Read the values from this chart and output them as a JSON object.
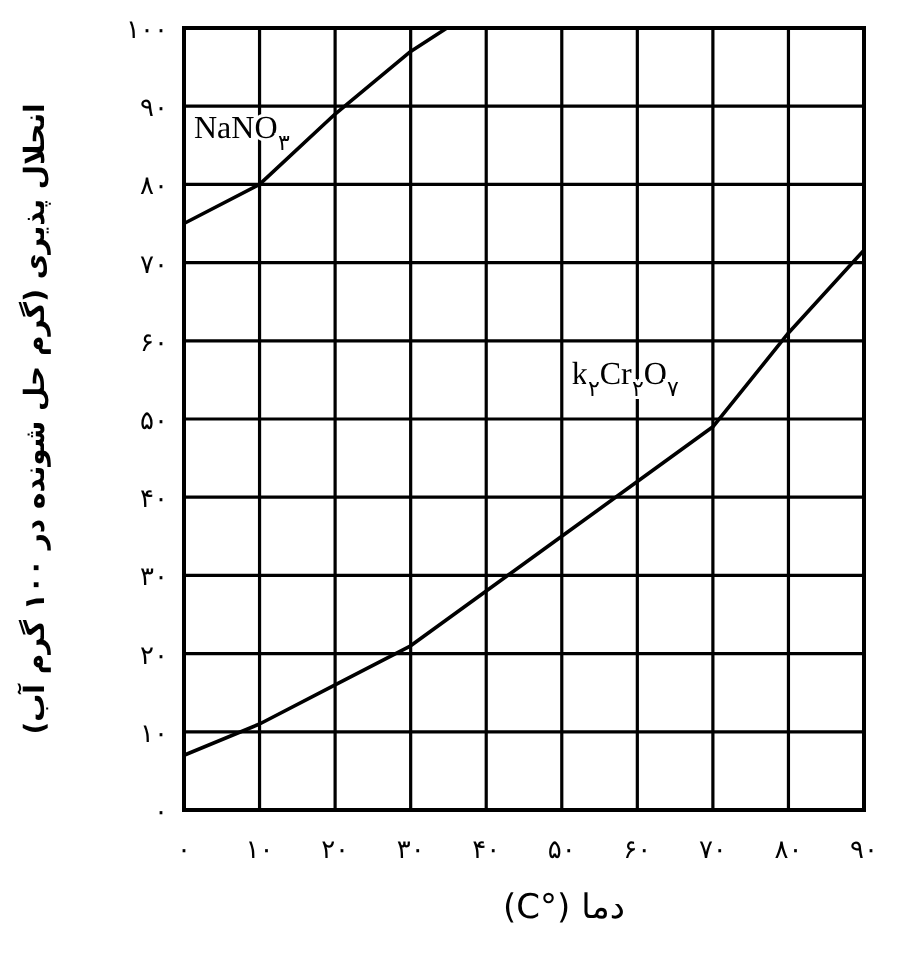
{
  "chart_data": {
    "type": "line",
    "xlabel": "دما (°C)",
    "ylabel": "انحلال پذیری (گرم حل شونده در ۱۰۰ گرم آب)",
    "xlim": [
      0,
      90
    ],
    "ylim": [
      0,
      100
    ],
    "xticks": [
      {
        "value": 0,
        "label": "۰"
      },
      {
        "value": 10,
        "label": "۱۰"
      },
      {
        "value": 20,
        "label": "۲۰"
      },
      {
        "value": 30,
        "label": "۳۰"
      },
      {
        "value": 40,
        "label": "۴۰"
      },
      {
        "value": 50,
        "label": "۵۰"
      },
      {
        "value": 60,
        "label": "۶۰"
      },
      {
        "value": 70,
        "label": "۷۰"
      },
      {
        "value": 80,
        "label": "۸۰"
      },
      {
        "value": 90,
        "label": "۹۰"
      }
    ],
    "yticks": [
      {
        "value": 0,
        "label": "۰"
      },
      {
        "value": 10,
        "label": "۱۰"
      },
      {
        "value": 20,
        "label": "۲۰"
      },
      {
        "value": 30,
        "label": "۳۰"
      },
      {
        "value": 40,
        "label": "۴۰"
      },
      {
        "value": 50,
        "label": "۵۰"
      },
      {
        "value": 60,
        "label": "۶۰"
      },
      {
        "value": 70,
        "label": "۷۰"
      },
      {
        "value": 80,
        "label": "۸۰"
      },
      {
        "value": 90,
        "label": "۹۰"
      },
      {
        "value": 100,
        "label": "۱۰۰"
      }
    ],
    "grid": true,
    "marker": "none",
    "line_style": "solid",
    "series": [
      {
        "name": "NaNO$_{۳}$",
        "color": "#000000",
        "x": [
          0,
          10,
          20,
          30,
          34.8
        ],
        "values": [
          75,
          80,
          89,
          97,
          100
        ]
      },
      {
        "name": "k$_{۲}$Cr$_{۲}$O$_{۷}$",
        "color": "#000000",
        "x": [
          0,
          10,
          20,
          30,
          40,
          50,
          60,
          70,
          80,
          90
        ],
        "values": [
          7,
          11,
          16,
          21,
          28,
          35,
          42,
          49,
          61,
          71.6
        ]
      }
    ]
  }
}
